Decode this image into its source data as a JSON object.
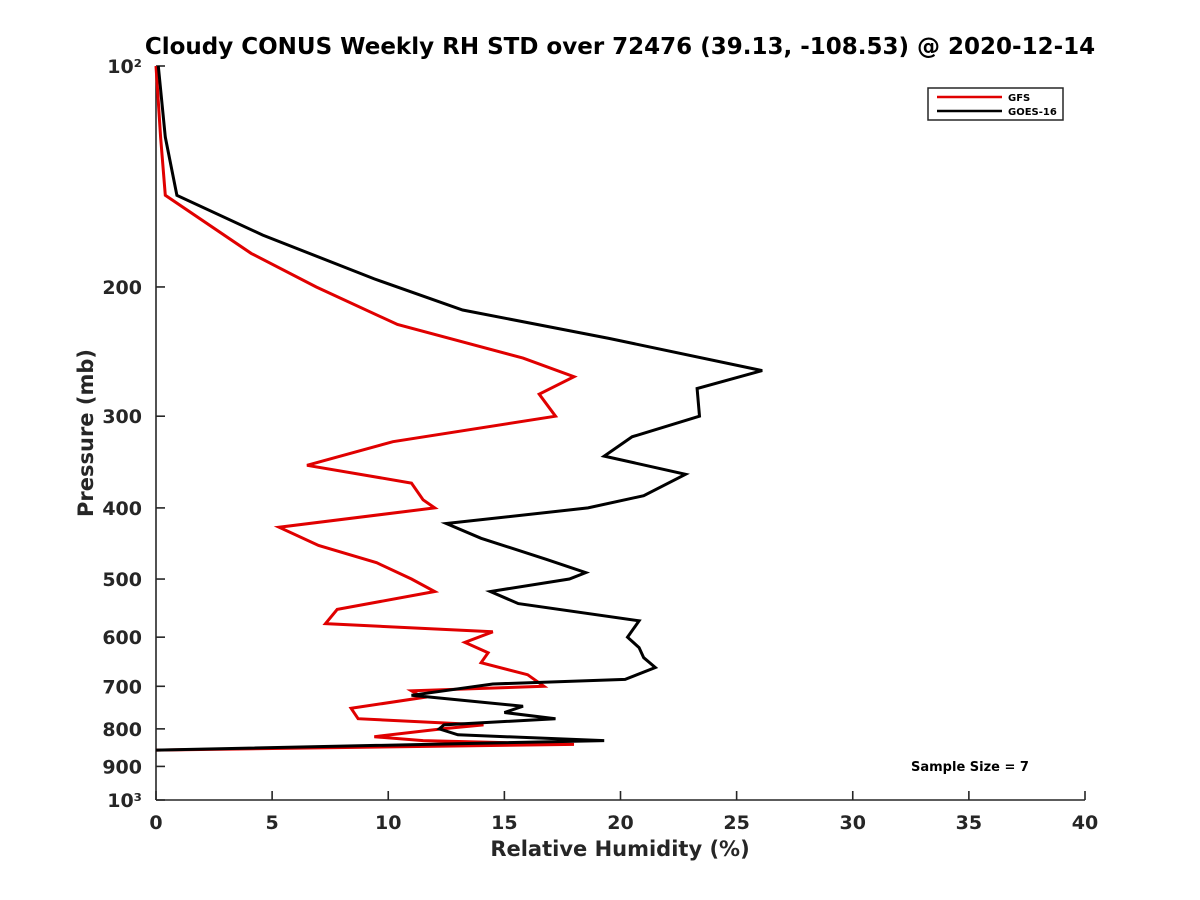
{
  "chart_data": {
    "type": "line",
    "title": "Cloudy CONUS Weekly RH STD over 72476 (39.13, -108.53) @ 2020-12-14",
    "xlabel": "Relative Humidity (%)",
    "ylabel": "Pressure (mb)",
    "xlim": [
      0,
      40
    ],
    "ylim": [
      100,
      1000
    ],
    "y_scale": "log",
    "y_reversed": true,
    "x_ticks": [
      0,
      5,
      10,
      15,
      20,
      25,
      30,
      35,
      40
    ],
    "x_tick_labels": [
      "0",
      "5",
      "10",
      "15",
      "20",
      "25",
      "30",
      "35",
      "40"
    ],
    "y_ticks": [
      100,
      200,
      300,
      400,
      500,
      600,
      700,
      800,
      900,
      1000
    ],
    "y_tick_labels": [
      "10²",
      "200",
      "300",
      "400",
      "500",
      "600",
      "700",
      "800",
      "900",
      "10³"
    ],
    "legend_position": "top-right",
    "annotation": "Sample Size = 7",
    "series": [
      {
        "name": "GFS",
        "color": "#e00000",
        "points": [
          [
            0.0,
            100
          ],
          [
            0.2,
            125
          ],
          [
            0.4,
            150
          ],
          [
            4.1,
            180
          ],
          [
            6.9,
            200
          ],
          [
            10.4,
            225
          ],
          [
            15.8,
            250
          ],
          [
            18.0,
            265
          ],
          [
            16.5,
            280
          ],
          [
            17.2,
            300
          ],
          [
            10.2,
            325
          ],
          [
            6.5,
            350
          ],
          [
            11.0,
            370
          ],
          [
            11.5,
            390
          ],
          [
            12.0,
            400
          ],
          [
            5.3,
            425
          ],
          [
            7.0,
            450
          ],
          [
            9.5,
            475
          ],
          [
            11.0,
            500
          ],
          [
            12.0,
            520
          ],
          [
            7.8,
            550
          ],
          [
            7.3,
            575
          ],
          [
            14.5,
            590
          ],
          [
            13.3,
            610
          ],
          [
            14.3,
            630
          ],
          [
            14.0,
            650
          ],
          [
            16.0,
            675
          ],
          [
            16.7,
            700
          ],
          [
            11.0,
            710
          ],
          [
            11.5,
            725
          ],
          [
            8.4,
            750
          ],
          [
            8.7,
            775
          ],
          [
            14.1,
            790
          ],
          [
            12.3,
            800
          ],
          [
            9.4,
            820
          ],
          [
            11.5,
            830
          ],
          [
            18.0,
            840
          ],
          [
            0.0,
            855
          ]
        ]
      },
      {
        "name": "GOES-16",
        "color": "#000000",
        "points": [
          [
            0.1,
            100
          ],
          [
            0.4,
            125
          ],
          [
            0.9,
            150
          ],
          [
            4.6,
            170
          ],
          [
            9.4,
            195
          ],
          [
            13.2,
            215
          ],
          [
            19.5,
            235
          ],
          [
            26.1,
            260
          ],
          [
            23.3,
            275
          ],
          [
            23.4,
            300
          ],
          [
            20.5,
            320
          ],
          [
            19.3,
            340
          ],
          [
            22.8,
            360
          ],
          [
            21.0,
            385
          ],
          [
            18.6,
            400
          ],
          [
            12.5,
            420
          ],
          [
            14.0,
            440
          ],
          [
            16.8,
            470
          ],
          [
            18.5,
            490
          ],
          [
            17.8,
            500
          ],
          [
            14.4,
            520
          ],
          [
            15.6,
            540
          ],
          [
            20.8,
            570
          ],
          [
            20.3,
            600
          ],
          [
            20.8,
            620
          ],
          [
            21.0,
            640
          ],
          [
            21.5,
            660
          ],
          [
            20.2,
            685
          ],
          [
            14.5,
            695
          ],
          [
            11.0,
            720
          ],
          [
            15.8,
            745
          ],
          [
            15.0,
            760
          ],
          [
            17.2,
            775
          ],
          [
            12.4,
            790
          ],
          [
            12.2,
            800
          ],
          [
            13.0,
            815
          ],
          [
            19.3,
            830
          ],
          [
            0.0,
            855
          ]
        ]
      }
    ]
  }
}
